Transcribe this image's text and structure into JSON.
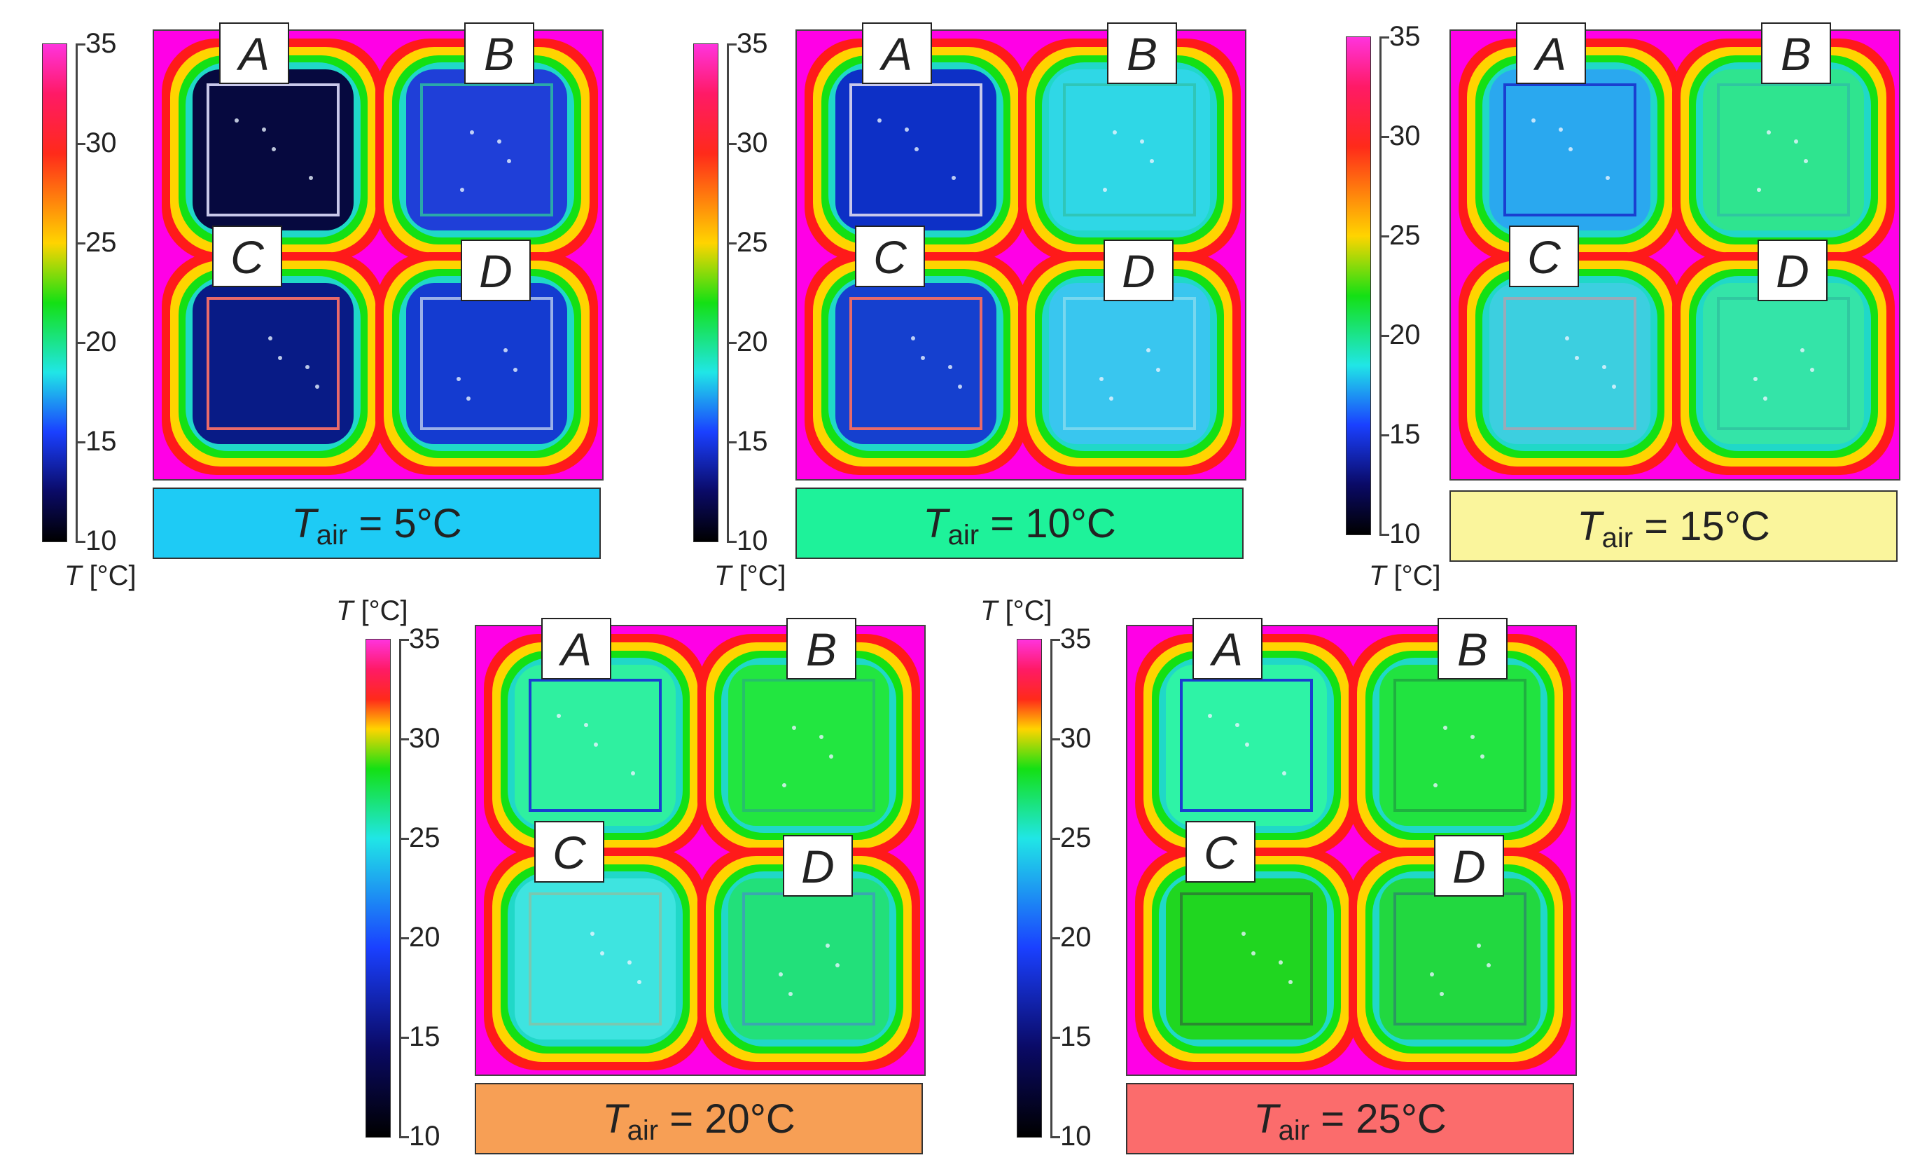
{
  "colorbar": {
    "ticks": [
      "35",
      "30",
      "25",
      "20",
      "15",
      "10"
    ],
    "unit_symbol": "T",
    "unit_text": " [°C]"
  },
  "cell_labels": [
    "A",
    "B",
    "C",
    "D"
  ],
  "panels": [
    {
      "caption_symbol": "T",
      "caption_sub": "air",
      "caption_value": " = 5°C",
      "caption_color": "#1ecbf5"
    },
    {
      "caption_symbol": "T",
      "caption_sub": "air",
      "caption_value": " = 10°C",
      "caption_color": "#1ef29a"
    },
    {
      "caption_symbol": "T",
      "caption_sub": "air",
      "caption_value": " = 15°C",
      "caption_color": "#faf59c"
    },
    {
      "caption_symbol": "T",
      "caption_sub": "air",
      "caption_value": " = 20°C",
      "caption_color": "#f79f55"
    },
    {
      "caption_symbol": "T",
      "caption_sub": "air",
      "caption_value": " = 25°C",
      "caption_color": "#fb6c6c"
    }
  ],
  "colors": {
    "background_hot": "#ff00e6",
    "roi_A": "#cfcfe8",
    "roi_C": "#e86a6a"
  }
}
